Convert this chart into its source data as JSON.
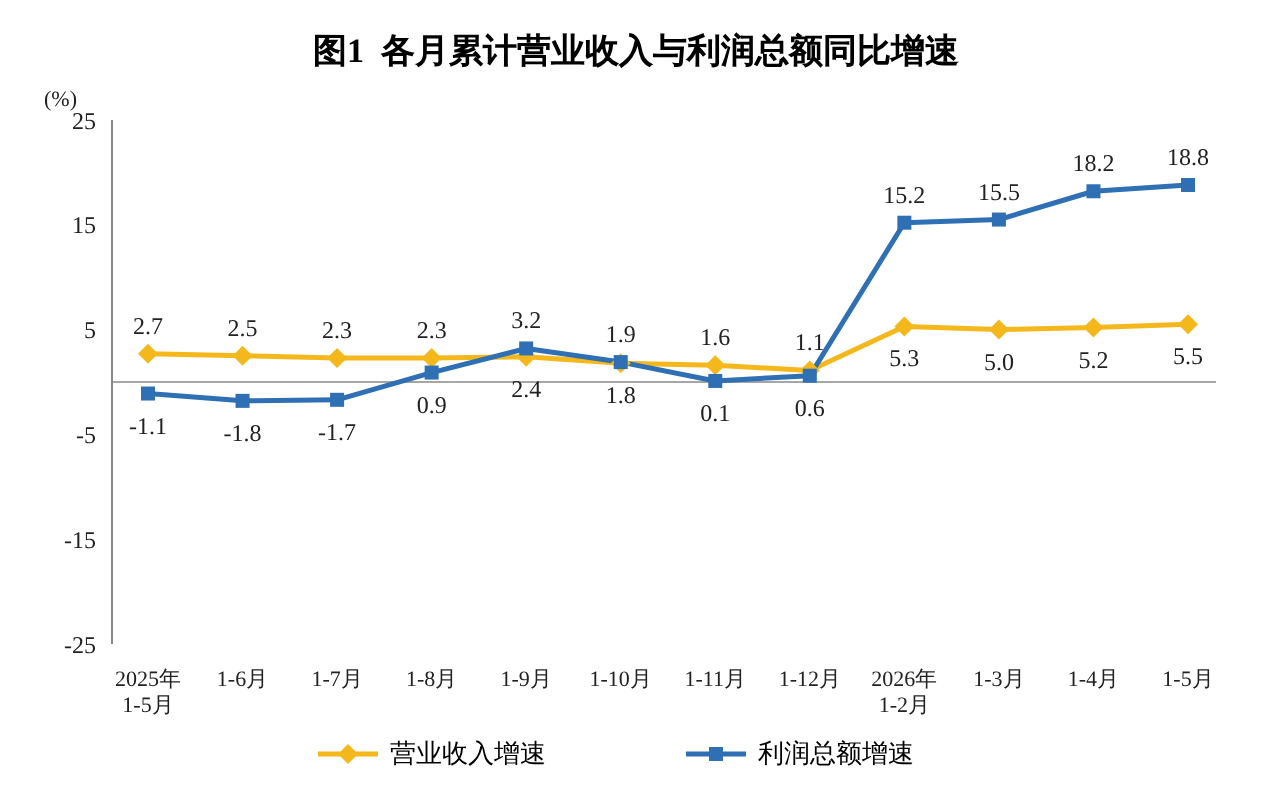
{
  "chart_data": {
    "type": "line",
    "title": "图1  各月累计营业收入与利润总额同比增速",
    "ylabel": "(%)",
    "categories": [
      "2025年\n1-5月",
      "1-6月",
      "1-7月",
      "1-8月",
      "1-9月",
      "1-10月",
      "1-11月",
      "1-12月",
      "2026年\n1-2月",
      "1-3月",
      "1-4月",
      "1-5月"
    ],
    "series": [
      {
        "name": "营业收入增速",
        "color": "#f5b81c",
        "marker": "diamond",
        "values": [
          2.7,
          2.5,
          2.3,
          2.3,
          2.4,
          1.8,
          1.6,
          1.1,
          5.3,
          5.0,
          5.2,
          5.5
        ],
        "value_labels": [
          "2.7",
          "2.5",
          "2.3",
          "2.3",
          "2.4",
          "1.8",
          "1.6",
          "1.1",
          "5.3",
          "5.0",
          "5.2",
          "5.5"
        ]
      },
      {
        "name": "利润总额增速",
        "color": "#2f6fb3",
        "marker": "square",
        "values": [
          -1.1,
          -1.8,
          -1.7,
          0.9,
          3.2,
          1.9,
          0.1,
          0.6,
          15.2,
          15.5,
          18.2,
          18.8
        ],
        "value_labels": [
          "-1.1",
          "-1.8",
          "-1.7",
          "0.9",
          "3.2",
          "1.9",
          "0.1",
          "0.6",
          "15.2",
          "15.5",
          "18.2",
          "18.8"
        ]
      }
    ],
    "ylim": [
      -25,
      25
    ],
    "yticks": [
      -25,
      -15,
      -5,
      5,
      15,
      25
    ],
    "ref_lines": [
      {
        "axis": "y",
        "value": 0,
        "color": "#a6a6a6"
      }
    ],
    "grid": false,
    "legend": "bottom",
    "line_style": "solid"
  }
}
